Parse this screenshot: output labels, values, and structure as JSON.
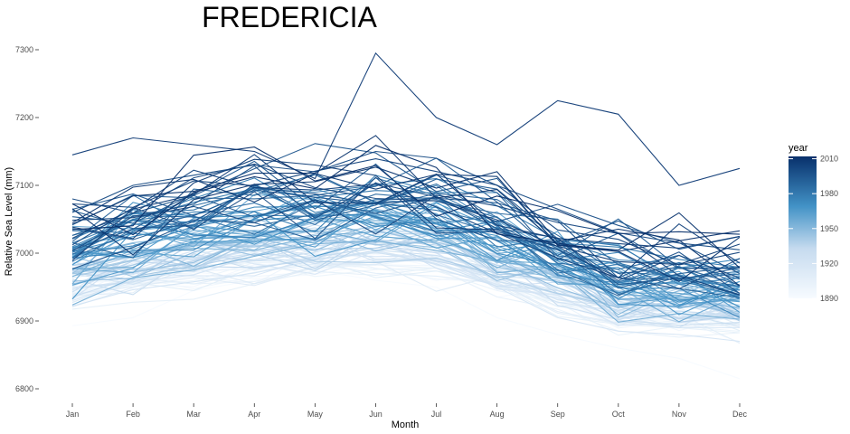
{
  "chart_data": {
    "type": "line",
    "title": "FREDERICIA",
    "xlabel": "Month",
    "ylabel": "Relative Sea Level (mm)",
    "categories": [
      "Jan",
      "Feb",
      "Mar",
      "Apr",
      "May",
      "Jun",
      "Jul",
      "Aug",
      "Sep",
      "Oct",
      "Nov",
      "Dec"
    ],
    "ylim": [
      6785,
      7310
    ],
    "yticks": [
      6800,
      6900,
      7000,
      7100,
      7200,
      7300
    ],
    "ytick_labels": [
      "6800",
      "6900",
      "7000",
      "7100",
      "7200",
      "7300"
    ],
    "grid": false,
    "series_encoding": "one line per year, colored by year",
    "series_count": 123,
    "year_range": [
      1890,
      2012
    ],
    "sampled_series": [
      {
        "year": 1890,
        "values": [
          6893,
          6905,
          6945,
          6960,
          6975,
          6960,
          6950,
          6905,
          6880,
          6860,
          6845,
          6815
        ]
      },
      {
        "year": 1920,
        "values": [
          6930,
          6960,
          6985,
          7005,
          7010,
          7020,
          7000,
          6950,
          6905,
          6885,
          6880,
          6870
        ]
      },
      {
        "year": 1950,
        "values": [
          6975,
          7010,
          7030,
          7050,
          7050,
          7080,
          7070,
          7020,
          6980,
          6940,
          6930,
          6920
        ]
      },
      {
        "year": 1980,
        "values": [
          7015,
          7050,
          7075,
          7095,
          7090,
          7100,
          7110,
          7070,
          7020,
          6990,
          6985,
          6975
        ]
      },
      {
        "year": 2000,
        "values": [
          7060,
          7100,
          7115,
          7130,
          7120,
          7150,
          7140,
          7100,
          7065,
          7030,
          7015,
          7005
        ]
      },
      {
        "year": 2007,
        "values": [
          7145,
          7170,
          7160,
          7150,
          7110,
          7295,
          7200,
          7160,
          7225,
          7205,
          7100,
          7125
        ]
      }
    ],
    "colorbar": {
      "title": "year",
      "ticks": [
        1890,
        1920,
        1950,
        1980,
        2010
      ],
      "min": 1890,
      "max": 2012,
      "color_low": "#f7fbff",
      "color_high": "#08306b",
      "placement": "right"
    }
  }
}
